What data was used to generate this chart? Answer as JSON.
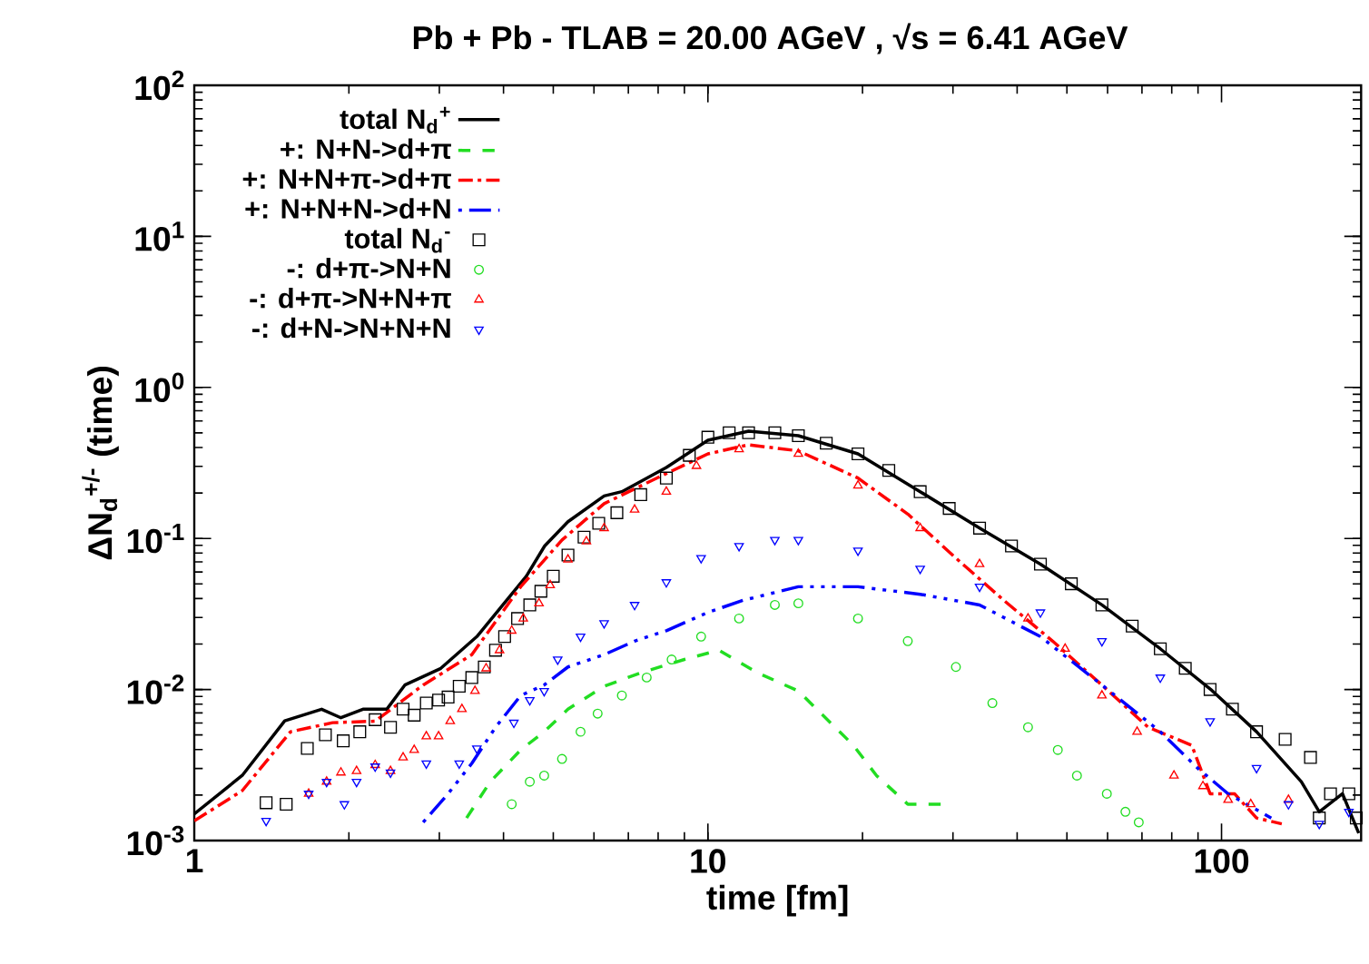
{
  "chart_data": {
    "type": "line",
    "title": "Pb + Pb -  TLAB =  20.00 AGeV , √s =   6.41 AGeV",
    "xlabel": "time [fm]",
    "ylabel": "ΔN$_{d}$$^{+/-}$ (time)",
    "log": "xy",
    "grid": false,
    "legend": "top left",
    "xlim": [
      1,
      187
    ],
    "ylim": [
      0.001,
      100
    ],
    "xticks": [
      1,
      10,
      100
    ],
    "yticks": [
      {
        "value": 0.001,
        "label": "10$^{-3}$"
      },
      {
        "value": 0.01,
        "label": "10$^{-2}$"
      },
      {
        "value": 0.1,
        "label": "10$^{-1}$"
      },
      {
        "value": 1,
        "label": "10$^{0}$"
      },
      {
        "value": 10,
        "label": "10$^{1}$"
      },
      {
        "value": 100,
        "label": "10$^{2}$"
      }
    ],
    "series": [
      {
        "name": "total N$_{d}$$^{+}$",
        "type": "line",
        "line_style": "solid",
        "color": "#000000",
        "x": [
          1,
          1.24,
          1.5,
          1.77,
          1.93,
          2.13,
          2.37,
          2.57,
          3.02,
          3.55,
          4.43,
          4.81,
          5.34,
          6.28,
          6.8,
          8.3,
          10,
          12,
          15,
          19.6,
          25.9,
          33.8,
          44.4,
          58.5,
          76,
          95.3,
          117,
          143,
          155,
          172,
          185
        ],
        "values": [
          0.0015,
          0.0027,
          0.0062,
          0.0074,
          0.0065,
          0.0074,
          0.0074,
          0.0107,
          0.0138,
          0.0224,
          0.0562,
          0.0891,
          0.129,
          0.191,
          0.204,
          0.295,
          0.447,
          0.513,
          0.479,
          0.363,
          0.204,
          0.117,
          0.0676,
          0.0363,
          0.0186,
          0.01,
          0.00525,
          0.00245,
          0.00155,
          0.00204,
          0.00112
        ]
      },
      {
        "name": "+: N+N->d+π",
        "type": "line",
        "line_style": "dashed",
        "color": "#22dd22",
        "x": [
          3.39,
          3.77,
          4.32,
          4.8,
          5.34,
          6.28,
          7.4,
          9.0,
          10.5,
          12.5,
          15,
          17.2,
          19.2,
          21.3,
          24.5,
          28.8
        ],
        "values": [
          0.00141,
          0.00245,
          0.00398,
          0.00525,
          0.00741,
          0.0105,
          0.0129,
          0.0158,
          0.0182,
          0.0129,
          0.00977,
          0.00617,
          0.00427,
          0.00269,
          0.00174,
          0.00174
        ]
      },
      {
        "name": "+: N+N+π->d+π",
        "type": "line",
        "line_style": "dashdot",
        "color": "#ff0000",
        "x": [
          1,
          1.24,
          1.54,
          1.86,
          2.25,
          2.79,
          3.47,
          4.32,
          5.2,
          6.28,
          8.3,
          10,
          12,
          15,
          19.6,
          24.5,
          30.4,
          37.7,
          46.9,
          58.5,
          72,
          87.5,
          95,
          106,
          117,
          131
        ],
        "values": [
          0.00135,
          0.00214,
          0.00525,
          0.00603,
          0.00617,
          0.0107,
          0.017,
          0.0479,
          0.0977,
          0.17,
          0.269,
          0.363,
          0.417,
          0.38,
          0.251,
          0.145,
          0.0741,
          0.0389,
          0.0209,
          0.0107,
          0.00562,
          0.00427,
          0.00204,
          0.00204,
          0.00141,
          0.00129
        ]
      },
      {
        "name": "+: N+N+N->d+N",
        "type": "line",
        "line_style": "dashdotdot",
        "color": "#0000ff",
        "x": [
          2.79,
          3.12,
          3.47,
          3.86,
          4.32,
          4.8,
          5.34,
          6.28,
          7.2,
          8.3,
          10,
          11.7,
          15,
          19.6,
          25.9,
          33.8,
          44.4,
          58.5,
          76,
          89.8,
          103,
          125
        ],
        "values": [
          0.00132,
          0.00204,
          0.00324,
          0.00562,
          0.00912,
          0.0107,
          0.0141,
          0.017,
          0.0209,
          0.0245,
          0.0324,
          0.0389,
          0.0479,
          0.0479,
          0.0427,
          0.0363,
          0.0224,
          0.0107,
          0.00525,
          0.00302,
          0.00204,
          0.00141
        ]
      },
      {
        "name": "total N$_{d}$$^{-}$",
        "type": "scatter",
        "marker": "square",
        "color": "#000000",
        "x": [
          1.38,
          1.51,
          1.66,
          1.8,
          1.95,
          2.1,
          2.25,
          2.41,
          2.55,
          2.68,
          2.83,
          2.99,
          3.12,
          3.28,
          3.47,
          3.67,
          3.86,
          4.02,
          4.26,
          4.5,
          4.73,
          5.0,
          5.34,
          5.74,
          6.13,
          6.65,
          7.4,
          8.3,
          9.2,
          10,
          11,
          12,
          13.5,
          15,
          17,
          19.6,
          22.5,
          25.9,
          29.5,
          33.8,
          39,
          44.4,
          51,
          58.5,
          67,
          76,
          85,
          95,
          105,
          117,
          133,
          149,
          155,
          163,
          177,
          183
        ],
        "values": [
          0.00178,
          0.00174,
          0.00407,
          0.00501,
          0.00457,
          0.00525,
          0.00631,
          0.00562,
          0.00741,
          0.00676,
          0.00813,
          0.00851,
          0.00891,
          0.0105,
          0.012,
          0.0141,
          0.0182,
          0.0224,
          0.0295,
          0.0363,
          0.0447,
          0.0562,
          0.0776,
          0.102,
          0.126,
          0.148,
          0.195,
          0.251,
          0.355,
          0.468,
          0.501,
          0.501,
          0.501,
          0.479,
          0.427,
          0.363,
          0.282,
          0.204,
          0.158,
          0.117,
          0.0891,
          0.0676,
          0.0501,
          0.0363,
          0.0263,
          0.0186,
          0.0138,
          0.01,
          0.00741,
          0.00525,
          0.00468,
          0.00355,
          0.00141,
          0.00204,
          0.00204,
          0.00141
        ]
      },
      {
        "name": "-: d+π->N+N",
        "type": "scatter",
        "marker": "circle",
        "color": "#22dd22",
        "x": [
          4.15,
          4.5,
          4.8,
          5.2,
          5.65,
          6.1,
          6.8,
          7.6,
          8.5,
          9.7,
          11.5,
          13.5,
          15,
          19.6,
          24.5,
          30.4,
          35.8,
          42,
          48,
          52.3,
          59.8,
          65,
          69
        ],
        "values": [
          0.00174,
          0.00245,
          0.00269,
          0.00347,
          0.00525,
          0.00692,
          0.00912,
          0.012,
          0.0158,
          0.0224,
          0.0295,
          0.0363,
          0.0372,
          0.0295,
          0.0209,
          0.0141,
          0.00813,
          0.00562,
          0.00398,
          0.00269,
          0.00204,
          0.00155,
          0.00132
        ]
      },
      {
        "name": "-: d+π->N+N+π",
        "type": "scatter",
        "marker": "triangle",
        "color": "#ff0000",
        "x": [
          1.67,
          1.81,
          1.93,
          2.07,
          2.25,
          2.41,
          2.55,
          2.68,
          2.83,
          2.99,
          3.15,
          3.32,
          3.52,
          3.7,
          3.93,
          4.15,
          4.37,
          4.69,
          4.93,
          5.34,
          5.8,
          6.28,
          7.2,
          8.3,
          9.5,
          11.5,
          15,
          19.6,
          25.9,
          33.8,
          42,
          49.6,
          58.5,
          68.5,
          80.8,
          92,
          103,
          114,
          135
        ],
        "values": [
          0.00204,
          0.00245,
          0.00282,
          0.00288,
          0.00316,
          0.00288,
          0.00355,
          0.00398,
          0.0049,
          0.0049,
          0.00617,
          0.00741,
          0.00977,
          0.0138,
          0.0182,
          0.0245,
          0.0295,
          0.0372,
          0.049,
          0.0724,
          0.0955,
          0.117,
          0.155,
          0.204,
          0.302,
          0.389,
          0.363,
          0.224,
          0.117,
          0.0676,
          0.0295,
          0.0186,
          0.00912,
          0.00525,
          0.00269,
          0.00229,
          0.00186,
          0.00174,
          0.00186
        ]
      },
      {
        "name": "-: d+N->N+N+N",
        "type": "scatter",
        "marker": "triangle_down",
        "color": "#0000ff",
        "x": [
          1.38,
          1.67,
          1.81,
          1.96,
          2.07,
          2.25,
          2.41,
          2.83,
          3.28,
          3.55,
          4.19,
          4.5,
          4.8,
          5.1,
          5.65,
          6.28,
          7.2,
          8.3,
          9.7,
          11.5,
          13.5,
          15,
          19.6,
          25.9,
          33.8,
          44.4,
          58.5,
          76,
          95,
          117,
          135,
          155,
          177
        ],
        "values": [
          0.00135,
          0.00204,
          0.00245,
          0.00174,
          0.00245,
          0.00309,
          0.00282,
          0.00324,
          0.00324,
          0.00407,
          0.00603,
          0.00851,
          0.00977,
          0.0158,
          0.0224,
          0.0275,
          0.0363,
          0.0513,
          0.0741,
          0.0891,
          0.0977,
          0.0977,
          0.0832,
          0.0631,
          0.0479,
          0.0324,
          0.0209,
          0.012,
          0.00617,
          0.00302,
          0.00174,
          0.00129,
          0.00155
        ]
      }
    ]
  }
}
